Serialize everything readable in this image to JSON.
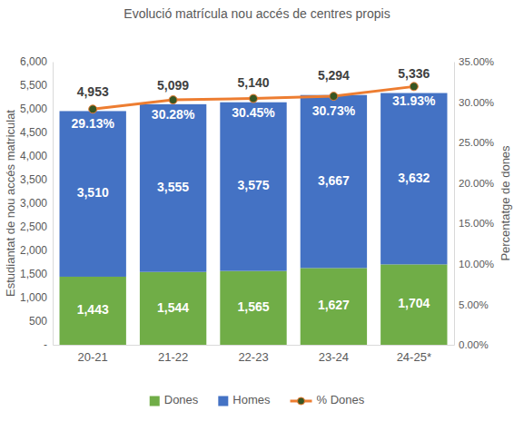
{
  "chart_data": {
    "type": "bar",
    "title": "Evolució matrícula nou accés de centres propis",
    "y_label": "Estudiantat de nou accés matriculat",
    "y2_label": "Percentatge de dones",
    "categories": [
      "20-21",
      "21-22",
      "22-23",
      "23-24",
      "24-25*"
    ],
    "stacked": true,
    "data_labels": true,
    "grid": false,
    "legend": "bottom",
    "series": [
      {
        "name": "Dones",
        "type": "bar",
        "color": "#70ad47",
        "values": [
          1443,
          1544,
          1565,
          1627,
          1704
        ],
        "value_labels": [
          "1,443",
          "1,544",
          "1,565",
          "1,627",
          "1,704"
        ]
      },
      {
        "name": "Homes",
        "type": "bar",
        "color": "#4472c4",
        "values": [
          3510,
          3555,
          3575,
          3667,
          3632
        ],
        "value_labels": [
          "3,510",
          "3,555",
          "3,575",
          "3,667",
          "3,632"
        ]
      },
      {
        "name": "% Dones",
        "type": "line",
        "axis": "y2",
        "color": "#ed7d31",
        "marker": "circle",
        "values": [
          29.13,
          30.28,
          30.45,
          30.73,
          31.93
        ],
        "value_labels": [
          "29.13%",
          "30.28%",
          "30.45%",
          "30.73%",
          "31.93%"
        ]
      }
    ],
    "totals": [
      4953,
      5099,
      5140,
      5294,
      5336
    ],
    "total_labels": [
      "4,953",
      "5,099",
      "5,140",
      "5,294",
      "5,336"
    ],
    "ylim": [
      0,
      6000
    ],
    "yticks": [
      {
        "value": 0,
        "label": "-"
      },
      500,
      {
        "value": 1000,
        "label": "1,000"
      },
      {
        "value": 1500,
        "label": "1,500"
      },
      {
        "value": 2000,
        "label": "2,000"
      },
      {
        "value": 2500,
        "label": "2,500"
      },
      {
        "value": 3000,
        "label": "3,000"
      },
      {
        "value": 3500,
        "label": "3,500"
      },
      {
        "value": 4000,
        "label": "4,000"
      },
      {
        "value": 4500,
        "label": "4,500"
      },
      {
        "value": 5000,
        "label": "5,000"
      },
      {
        "value": 5500,
        "label": "5,500"
      },
      {
        "value": 6000,
        "label": "6,000"
      }
    ],
    "y2lim": [
      0,
      35
    ],
    "y2ticks": [
      {
        "value": 0,
        "label": "0.00%"
      },
      {
        "value": 5,
        "label": "5.00%"
      },
      {
        "value": 10,
        "label": "10.00%"
      },
      {
        "value": 15,
        "label": "15.00%"
      },
      {
        "value": 20,
        "label": "20.00%"
      },
      {
        "value": 25,
        "label": "25.00%"
      },
      {
        "value": 30,
        "label": "30.00%"
      },
      {
        "value": 35,
        "label": "35.00%"
      }
    ]
  }
}
